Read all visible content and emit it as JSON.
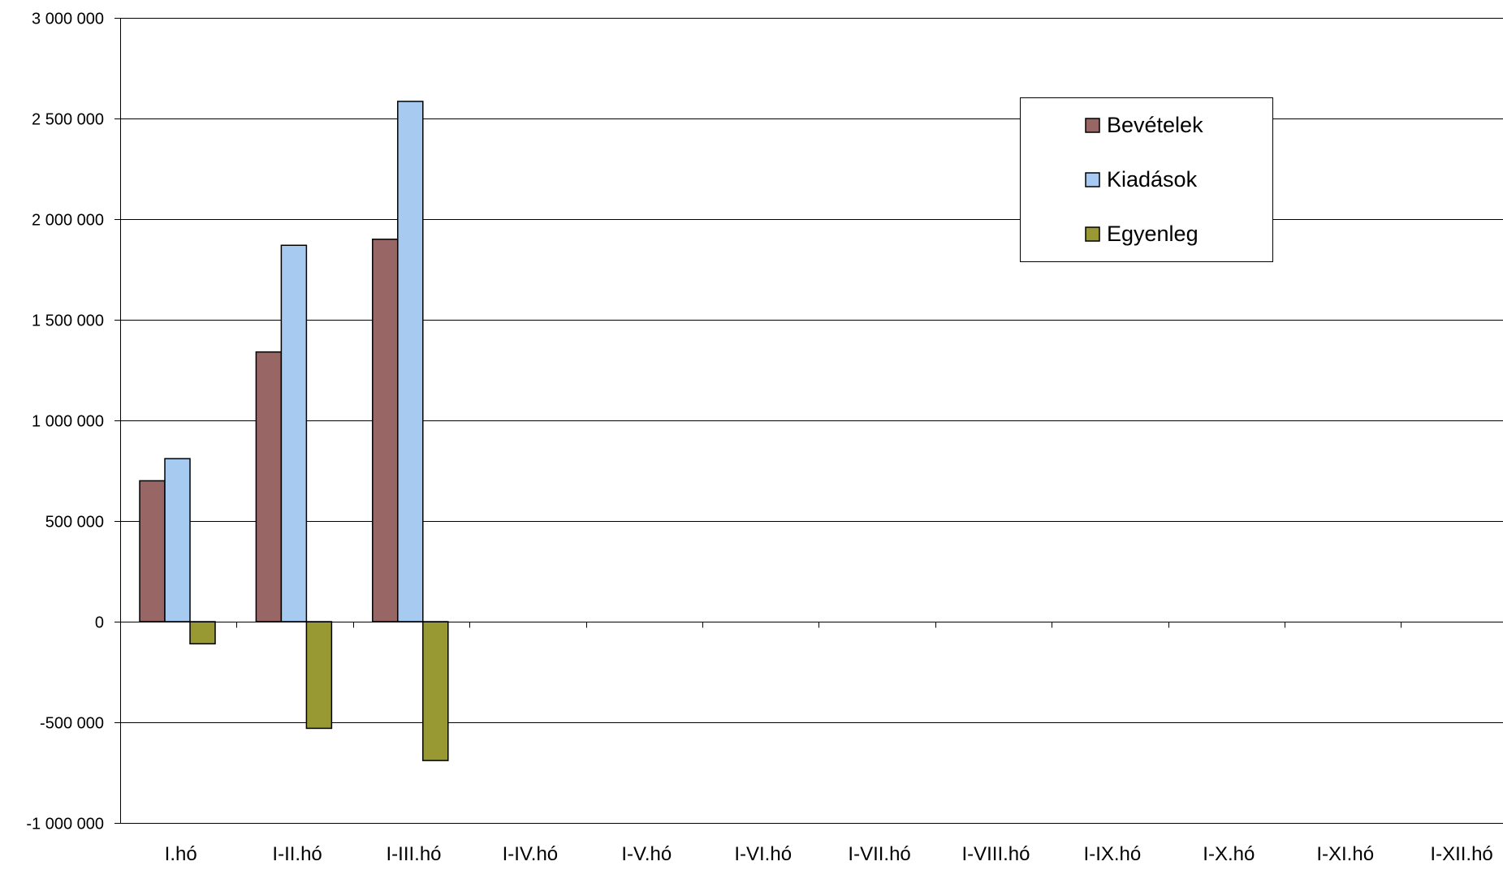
{
  "chart_data": {
    "type": "bar",
    "categories": [
      "I.hó",
      "I-II.hó",
      "I-III.hó",
      "I-IV.hó",
      "I-V.hó",
      "I-VI.hó",
      "I-VII.hó",
      "I-VIII.hó",
      "I-IX.hó",
      "I-X.hó",
      "I-XI.hó",
      "I-XII.hó"
    ],
    "series": [
      {
        "name": "Bevételek",
        "color": "#996666",
        "values": [
          700000,
          1340000,
          1900000,
          null,
          null,
          null,
          null,
          null,
          null,
          null,
          null,
          null
        ]
      },
      {
        "name": "Kiadások",
        "color": "#A6CAF0",
        "values": [
          810000,
          1870000,
          2585000,
          null,
          null,
          null,
          null,
          null,
          null,
          null,
          null,
          null
        ]
      },
      {
        "name": "Egyenleg",
        "color": "#999933",
        "values": [
          -110000,
          -530000,
          -690000,
          null,
          null,
          null,
          null,
          null,
          null,
          null,
          null,
          null
        ]
      }
    ],
    "ylim": [
      -1000000,
      3000000
    ],
    "yticks": [
      3000000,
      2500000,
      2000000,
      1500000,
      1000000,
      500000,
      0,
      -500000,
      -1000000
    ],
    "ytick_labels": [
      "3 000 000",
      "2 500 000",
      "2 000 000",
      "1 500 000",
      "1 000 000",
      "500 000",
      "0",
      "-500 000",
      "-1 000 000"
    ],
    "grid": true,
    "legend_position": "top-right"
  }
}
